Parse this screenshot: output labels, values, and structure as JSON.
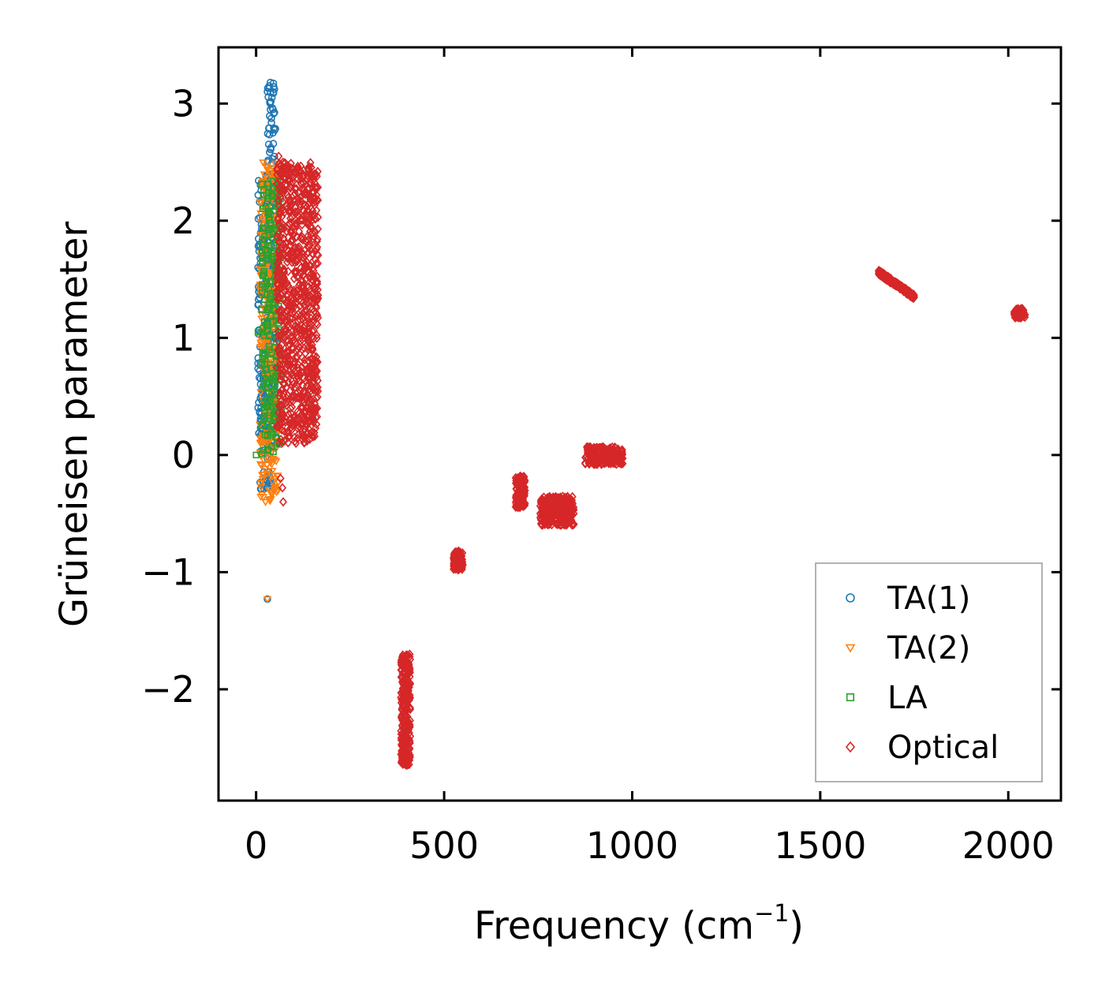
{
  "chart_data": {
    "type": "scatter",
    "title": "",
    "xlabel": "Frequency (cm",
    "xlabel_sup": "−1",
    "xlabel_end": ")",
    "ylabel": "Grüneisen parameter",
    "xlim": [
      -100,
      2140
    ],
    "ylim": [
      -2.95,
      3.48
    ],
    "xticks": [
      0,
      500,
      1000,
      1500,
      2000
    ],
    "xtick_labels": [
      "0",
      "500",
      "1000",
      "1500",
      "2000"
    ],
    "yticks": [
      -2,
      -1,
      0,
      1,
      2,
      3
    ],
    "ytick_labels": [
      "−2",
      "−1",
      "0",
      "1",
      "2",
      "3"
    ],
    "grid": false,
    "legend_position": "lower-right",
    "series": [
      {
        "name": "TA(1)",
        "marker": "circle",
        "color": "#1f77b4",
        "clusters": [
          {
            "x": [
              5,
              58
            ],
            "y": [
              0.0,
              2.4
            ],
            "n": 320
          },
          {
            "x": [
              30,
              52
            ],
            "y": [
              2.3,
              3.2
            ],
            "n": 45
          },
          {
            "x": [
              10,
              45
            ],
            "y": [
              -0.3,
              0.6
            ],
            "n": 40
          }
        ],
        "points": [
          [
            30,
            -1.23
          ],
          [
            38,
            3.18
          ],
          [
            42,
            3.05
          ],
          [
            45,
            2.95
          ],
          [
            20,
            1.8
          ],
          [
            25,
            0.45
          ],
          [
            28,
            -0.28
          ],
          [
            35,
            -0.18
          ]
        ]
      },
      {
        "name": "TA(2)",
        "marker": "triangle-down",
        "color": "#ff7f0e",
        "clusters": [
          {
            "x": [
              10,
              62
            ],
            "y": [
              -0.4,
              2.5
            ],
            "n": 280
          }
        ],
        "points": [
          [
            30,
            -1.23
          ],
          [
            25,
            -0.4
          ],
          [
            35,
            -0.38
          ],
          [
            45,
            2.45
          ]
        ]
      },
      {
        "name": "LA",
        "marker": "square",
        "color": "#2ca02c",
        "clusters": [
          {
            "x": [
              15,
              68
            ],
            "y": [
              0.0,
              2.35
            ],
            "n": 240
          }
        ],
        "points": [
          [
            0,
            0.0
          ],
          [
            5,
            1.05
          ],
          [
            15,
            1.05
          ]
        ]
      },
      {
        "name": "Optical",
        "marker": "diamond",
        "color": "#d62728",
        "clusters": [
          {
            "x": [
              55,
              165
            ],
            "y": [
              0.1,
              2.5
            ],
            "n": 900
          },
          {
            "x": [
              385,
              410
            ],
            "y": [
              -2.65,
              -1.7
            ],
            "n": 300
          },
          {
            "x": [
              525,
              550
            ],
            "y": [
              -0.98,
              -0.82
            ],
            "n": 120
          },
          {
            "x": [
              690,
              715
            ],
            "y": [
              -0.45,
              -0.18
            ],
            "n": 150
          },
          {
            "x": [
              755,
              845
            ],
            "y": [
              -0.6,
              -0.35
            ],
            "n": 260
          },
          {
            "x": [
              875,
              975
            ],
            "y": [
              -0.08,
              0.07
            ],
            "n": 200
          },
          {
            "x": [
              1655,
              1750
            ],
            "y": [
              1.35,
              1.56
            ],
            "n": 240
          },
          {
            "x": [
              2015,
              2045
            ],
            "y": [
              1.17,
              1.25
            ],
            "n": 80
          }
        ],
        "points": [
          [
            60,
            2.55
          ],
          [
            70,
            2.45
          ],
          [
            65,
            -0.2
          ],
          [
            70,
            -0.28
          ],
          [
            72,
            -0.4
          ],
          [
            75,
            0.12
          ]
        ]
      }
    ]
  }
}
